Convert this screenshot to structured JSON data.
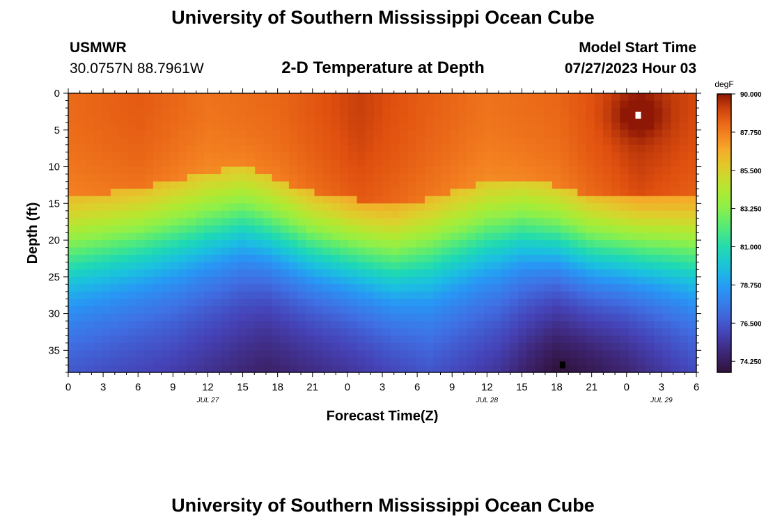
{
  "page": {
    "title_top": "University of Southern Mississippi Ocean Cube",
    "title_bottom": "University of Southern Mississippi Ocean Cube",
    "station": "USMWR",
    "location": "30.0757N  88.7961W",
    "subtitle": "2-D Temperature at Depth",
    "model_start_label": "Model Start Time",
    "model_start_value": "07/27/2023 Hour 03"
  },
  "chart_data": {
    "type": "heatmap",
    "xlabel": "Forecast Time(Z)",
    "ylabel": "Depth (ft)",
    "x_tick_labels": [
      "0",
      "3",
      "6",
      "9",
      "12",
      "15",
      "18",
      "21",
      "0",
      "3",
      "6",
      "9",
      "12",
      "15",
      "18",
      "21",
      "0",
      "3",
      "6"
    ],
    "date_labels": [
      {
        "label": "JUL 27",
        "hour": 12
      },
      {
        "label": "JUL 28",
        "hour": 36
      },
      {
        "label": "JUL 29",
        "hour": 51
      }
    ],
    "xlim_hours": [
      0,
      54
    ],
    "ylim_depth_ft": [
      0,
      38
    ],
    "y_tick_labels": [
      "0",
      "5",
      "10",
      "15",
      "20",
      "25",
      "30",
      "35"
    ],
    "y_ticks": [
      0,
      5,
      10,
      15,
      20,
      25,
      30,
      35
    ],
    "colorbar": {
      "unit": "degF",
      "range": [
        73.6,
        90.0
      ],
      "tick_labels": [
        "90.000",
        "87.750",
        "85.500",
        "83.250",
        "81.000",
        "78.750",
        "76.500",
        "74.250"
      ],
      "tick_values": [
        90.0,
        87.75,
        85.5,
        83.25,
        81.0,
        78.75,
        76.5,
        74.25
      ]
    },
    "markers": [
      {
        "kind": "max",
        "color": "#ffffff",
        "hour": 49,
        "depth": 3
      },
      {
        "kind": "min",
        "color": "#000000",
        "hour": 42.5,
        "depth": 37
      }
    ],
    "thermocline_depth_ft": [
      {
        "hour": 0,
        "depth": 20.5
      },
      {
        "hour": 7,
        "depth": 18.5
      },
      {
        "hour": 15,
        "depth": 16.0
      },
      {
        "hour": 21,
        "depth": 19.5
      },
      {
        "hour": 28,
        "depth": 21.5
      },
      {
        "hour": 36,
        "depth": 18.0
      },
      {
        "hour": 39,
        "depth": 17.5
      },
      {
        "hour": 45,
        "depth": 20.0
      },
      {
        "hour": 54,
        "depth": 20.5
      }
    ],
    "surface_temp_degF": [
      {
        "hour": 0,
        "value": 88.2
      },
      {
        "hour": 6,
        "value": 88.6
      },
      {
        "hour": 12,
        "value": 88.0
      },
      {
        "hour": 18,
        "value": 88.3
      },
      {
        "hour": 25,
        "value": 89.2
      },
      {
        "hour": 30,
        "value": 88.6
      },
      {
        "hour": 36,
        "value": 88.0
      },
      {
        "hour": 42,
        "value": 88.3
      },
      {
        "hour": 49,
        "value": 89.5
      },
      {
        "hour": 54,
        "value": 89.0
      }
    ],
    "bottom_temp_degF": [
      {
        "hour": 0,
        "value": 76.4
      },
      {
        "hour": 9,
        "value": 75.6
      },
      {
        "hour": 17,
        "value": 74.4
      },
      {
        "hour": 24,
        "value": 75.2
      },
      {
        "hour": 31,
        "value": 76.3
      },
      {
        "hour": 37,
        "value": 75.4
      },
      {
        "hour": 42,
        "value": 73.9
      },
      {
        "hour": 48,
        "value": 74.6
      },
      {
        "hour": 54,
        "value": 76.0
      }
    ]
  }
}
